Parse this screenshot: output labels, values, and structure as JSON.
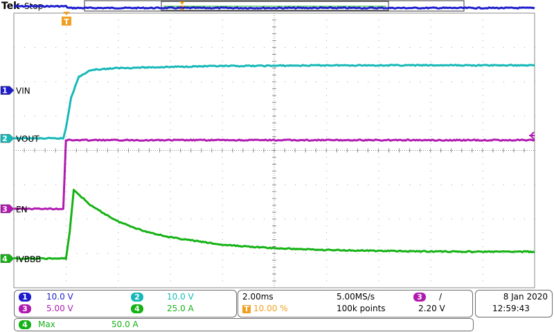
{
  "header": {
    "brand": "Tek",
    "status": "Stop"
  },
  "colors": {
    "ch1": "#1c1ccc",
    "ch2": "#17b8b8",
    "ch3": "#b01ab0",
    "ch4": "#15b215",
    "grid": "#8a8a8a",
    "trigger": "#f0a020"
  },
  "channels": [
    {
      "num": "1",
      "name": "VIN",
      "scale": "10.0 V"
    },
    {
      "num": "2",
      "name": "VOUT",
      "scale": "10.0 V"
    },
    {
      "num": "3",
      "name": "EN",
      "scale": "5.00 V"
    },
    {
      "num": "4",
      "name": "IVBBB",
      "scale": "25.0 A"
    }
  ],
  "markers": {
    "trigger_marker": "T",
    "position_marker": "T"
  },
  "timebase": {
    "scale": "2.00ms",
    "sample_rate": "5.00MS/s",
    "trigger_pos": "10.00 %",
    "record": "100k points"
  },
  "trigger": {
    "source": "3",
    "slope": "/",
    "level": "2.20 V"
  },
  "datetime": {
    "date": "8 Jan  2020",
    "time": "12:59:43"
  },
  "measurement": {
    "channel": "4",
    "label": "Max",
    "value": "50.0 A"
  },
  "chart_data": {
    "type": "line",
    "title": "",
    "xlabel": "",
    "ylabel": "",
    "x_unit": "ms",
    "xlim": [
      -2,
      18
    ],
    "ylim_div": [
      -4,
      4
    ],
    "grid": true,
    "series": [
      {
        "name": "VIN",
        "channel": "1",
        "volts_per_div": 10,
        "offset_div": 1.75,
        "x": [
          -2,
          0,
          0.1,
          18
        ],
        "y": [
          24.5,
          24.5,
          24,
          24
        ]
      },
      {
        "name": "VOUT",
        "channel": "2",
        "volts_per_div": 10,
        "offset_div": 0.35,
        "x": [
          -2,
          -0.1,
          0,
          0.2,
          0.5,
          1,
          2,
          5,
          10,
          18
        ],
        "y": [
          0,
          0,
          3,
          12,
          18,
          20,
          20.5,
          21,
          21.3,
          21.3
        ]
      },
      {
        "name": "EN",
        "channel": "3",
        "volts_per_div": 5,
        "offset_div": -1.7,
        "x": [
          -2,
          -0.1,
          0,
          18
        ],
        "y": [
          0,
          0,
          10,
          10
        ]
      },
      {
        "name": "IVBBB",
        "channel": "4",
        "amps_per_div": 25,
        "offset_div": -3.15,
        "x": [
          -2,
          0,
          0.15,
          0.3,
          1,
          2,
          3,
          4,
          6,
          8,
          10,
          12,
          14,
          16,
          18
        ],
        "y": [
          0,
          0,
          20,
          50,
          38,
          27,
          20,
          15.5,
          10,
          7.5,
          6.3,
          5.6,
          5.2,
          5,
          5
        ]
      }
    ]
  }
}
